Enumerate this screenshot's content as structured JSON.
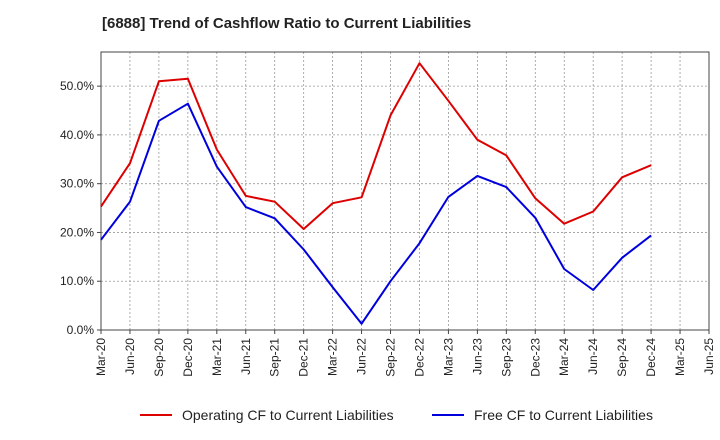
{
  "chart_data": {
    "type": "line",
    "title": "[6888]  Trend of Cashflow Ratio to Current Liabilities",
    "xlabel": "",
    "ylabel": "",
    "categories": [
      "Mar-20",
      "Jun-20",
      "Sep-20",
      "Dec-20",
      "Mar-21",
      "Jun-21",
      "Sep-21",
      "Dec-21",
      "Mar-22",
      "Jun-22",
      "Sep-22",
      "Dec-22",
      "Mar-23",
      "Jun-23",
      "Sep-23",
      "Dec-23",
      "Mar-24",
      "Jun-24",
      "Sep-24",
      "Dec-24",
      "Mar-25",
      "Jun-25"
    ],
    "ylim": [
      0,
      57
    ],
    "yticks": [
      0,
      10,
      20,
      30,
      40,
      50
    ],
    "ytick_labels": [
      "0.0%",
      "10.0%",
      "20.0%",
      "30.0%",
      "40.0%",
      "50.0%"
    ],
    "grid": true,
    "legend_position": "bottom",
    "series": [
      {
        "name": "Operating CF to Current Liabilities",
        "color": "#dd0000",
        "values": [
          25.3,
          34.2,
          51.0,
          51.5,
          37.0,
          27.5,
          26.3,
          20.7,
          26.0,
          27.2,
          44.0,
          54.7,
          47.0,
          39.0,
          35.8,
          27.0,
          21.8,
          24.3,
          31.3,
          33.8,
          null,
          null
        ]
      },
      {
        "name": "Free CF to Current Liabilities",
        "color": "#0000dd",
        "values": [
          18.5,
          26.3,
          42.9,
          46.4,
          33.5,
          25.2,
          22.9,
          16.5,
          8.8,
          1.3,
          10.0,
          17.8,
          27.3,
          31.6,
          29.3,
          23.0,
          12.5,
          8.2,
          14.8,
          19.4,
          null,
          null
        ]
      }
    ]
  }
}
